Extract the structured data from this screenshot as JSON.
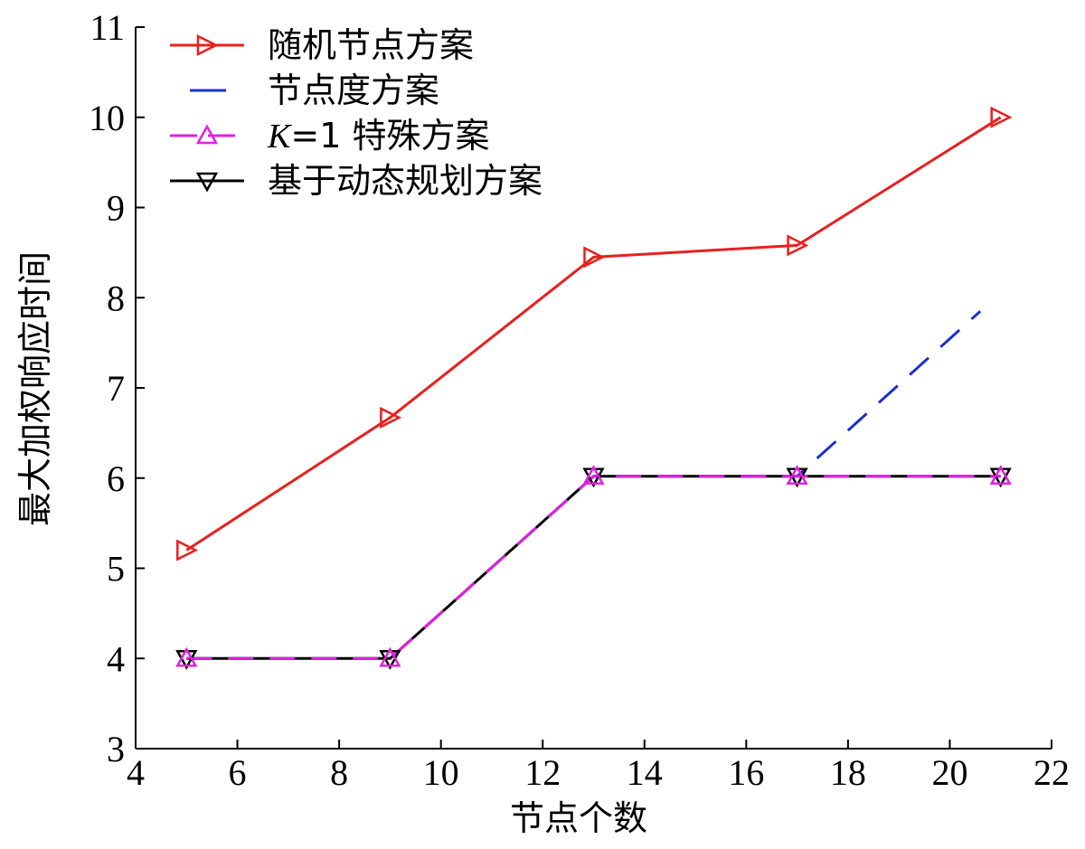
{
  "chart_data": {
    "type": "line",
    "xlabel": "节点个数",
    "ylabel": "最大加权响应时间",
    "xlim": [
      4,
      22
    ],
    "ylim": [
      3,
      11
    ],
    "xticks": [
      4,
      6,
      8,
      10,
      12,
      14,
      16,
      18,
      20,
      22
    ],
    "yticks": [
      3,
      4,
      5,
      6,
      7,
      8,
      9,
      10,
      11
    ],
    "grid": false,
    "legend_position": "top-left",
    "series": [
      {
        "name": "随机节点方案",
        "color": "#e8201e",
        "marker": "triangle-right",
        "line_style": "solid",
        "x": [
          5,
          9,
          13,
          17,
          21
        ],
        "y": [
          5.2,
          6.67,
          8.45,
          8.58,
          10.0
        ]
      },
      {
        "name": "节点度方案",
        "color": "#1a2fcc",
        "marker": "none",
        "line_style": "dashed",
        "x": [
          5,
          9,
          13,
          17,
          20.6
        ],
        "y": [
          4.0,
          4.0,
          6.02,
          6.02,
          7.85
        ]
      },
      {
        "name_parts": {
          "italic": "K",
          "rest": "=1 特殊方案"
        },
        "color": "#e020e0",
        "marker": "triangle-up",
        "line_style": "dashed",
        "x": [
          5,
          9,
          13,
          17,
          21
        ],
        "y": [
          4.0,
          4.0,
          6.02,
          6.02,
          6.02
        ]
      },
      {
        "name": "基于动态规划方案",
        "color": "#000000",
        "marker": "triangle-down",
        "line_style": "solid",
        "x": [
          5,
          9,
          13,
          17,
          21
        ],
        "y": [
          4.0,
          4.0,
          6.02,
          6.02,
          6.02
        ]
      }
    ]
  }
}
